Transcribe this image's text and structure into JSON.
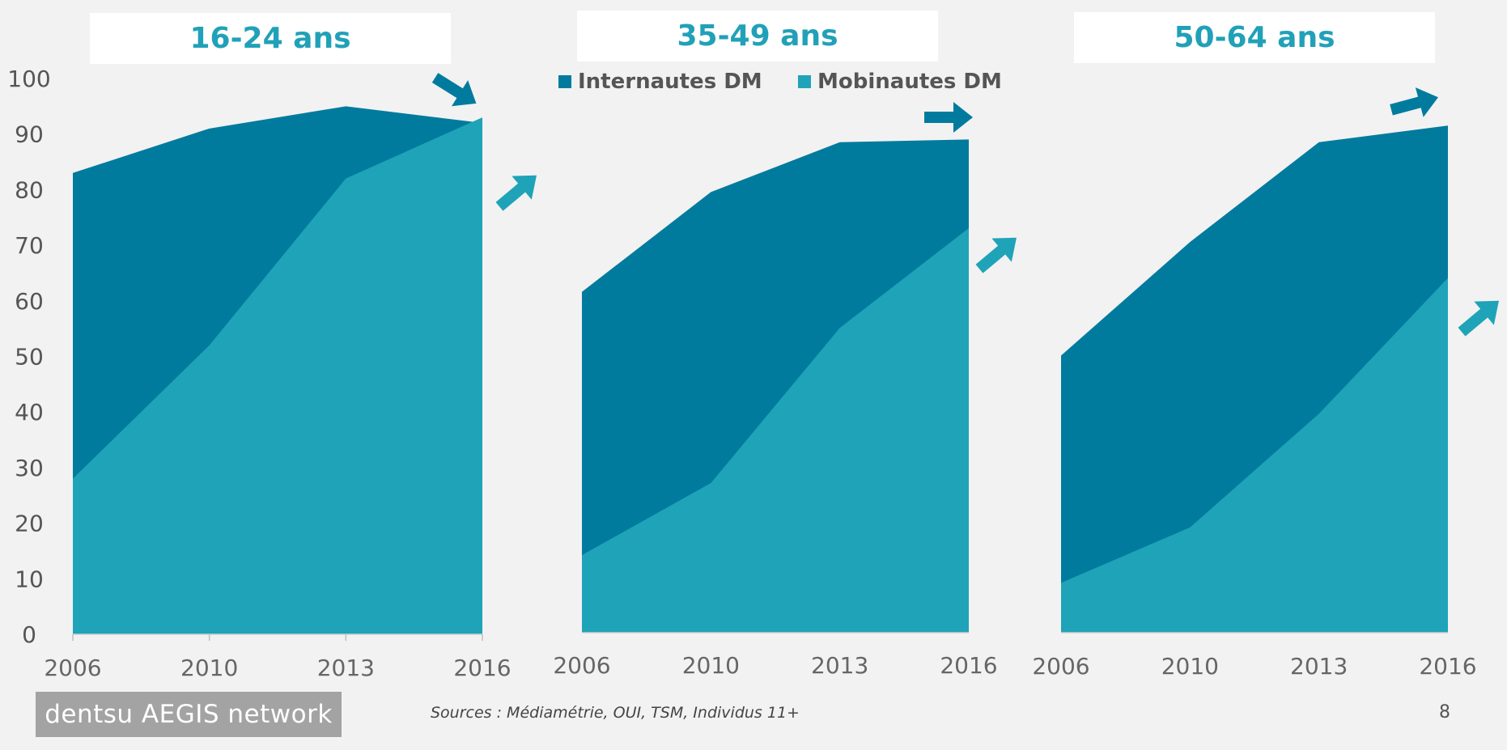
{
  "colors": {
    "internautes": "#007b9e",
    "mobinautes": "#1fa3b8",
    "background": "#f2f2f2",
    "title_text": "#21a1b8"
  },
  "legend": {
    "internautes_label": "Internautes DM",
    "mobinautes_label": "Mobinautes DM"
  },
  "footer": {
    "logo": "dentsu AEGIS network",
    "source": "Sources : Médiamétrie, OUI, TSM,  Individus 11+",
    "page_number": "8"
  },
  "chart_data": [
    {
      "type": "area",
      "title": "16-24 ans",
      "categories": [
        "2006",
        "2010",
        "2013",
        "2016"
      ],
      "series": [
        {
          "name": "Internautes DM",
          "values": [
            83,
            91,
            95,
            92
          ]
        },
        {
          "name": "Mobinautes DM",
          "values": [
            28,
            52,
            82,
            93
          ]
        }
      ],
      "ylim": [
        0,
        100
      ],
      "yticks": [
        0,
        10,
        20,
        30,
        40,
        50,
        60,
        70,
        80,
        90,
        100
      ],
      "trend_arrows": {
        "internautes": "down",
        "mobinautes": "up"
      }
    },
    {
      "type": "area",
      "title": "35-49 ans",
      "categories": [
        "2006",
        "2010",
        "2013",
        "2016"
      ],
      "series": [
        {
          "name": "Internautes DM",
          "values": [
            61.5,
            79.5,
            88.5,
            89
          ]
        },
        {
          "name": "Mobinautes DM",
          "values": [
            14,
            27,
            55,
            73
          ]
        }
      ],
      "ylim": [
        0,
        100
      ],
      "trend_arrows": {
        "internautes": "flat",
        "mobinautes": "up"
      }
    },
    {
      "type": "area",
      "title": "50-64 ans",
      "categories": [
        "2006",
        "2010",
        "2013",
        "2016"
      ],
      "series": [
        {
          "name": "Internautes DM",
          "values": [
            50,
            70.5,
            88.5,
            91.5
          ]
        },
        {
          "name": "Mobinautes DM",
          "values": [
            9,
            19,
            39.5,
            64
          ]
        }
      ],
      "ylim": [
        0,
        100
      ],
      "trend_arrows": {
        "internautes": "slightly-up",
        "mobinautes": "up"
      }
    }
  ]
}
